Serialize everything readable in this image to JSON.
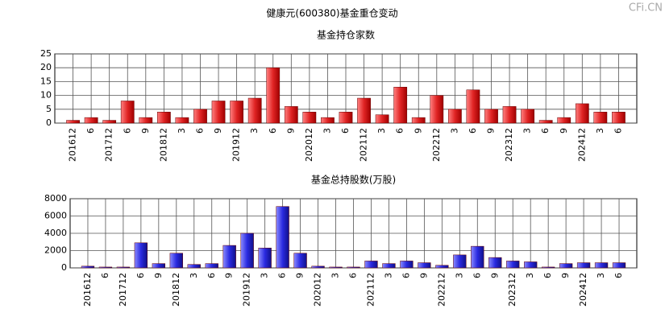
{
  "title": "健康元(600380)基金重仓变动",
  "watermark": "CFi.CN",
  "chart_data": [
    {
      "type": "bar",
      "title": "基金持仓家数",
      "color": "#e02424",
      "categories": [
        "201612",
        "6",
        "201712",
        "6",
        "9",
        "201812",
        "3",
        "6",
        "9",
        "201912",
        "3",
        "6",
        "9",
        "202012",
        "3",
        "6",
        "202112",
        "3",
        "6",
        "9",
        "202212",
        "3",
        "6",
        "9",
        "202312",
        "3",
        "6",
        "9",
        "202412",
        "3",
        "6"
      ],
      "values": [
        1,
        2,
        1,
        8,
        2,
        4,
        2,
        5,
        8,
        8,
        9,
        20,
        6,
        4,
        2,
        4,
        9,
        3,
        13,
        2,
        10,
        5,
        12,
        5,
        6,
        5,
        1,
        2,
        7,
        4,
        4
      ],
      "ylim": [
        0,
        25
      ],
      "yticks": [
        0,
        5,
        10,
        15,
        20,
        25
      ],
      "grid": true
    },
    {
      "type": "bar",
      "title": "基金总持股数(万股)",
      "color": "#2a2ae0",
      "categories": [
        "201612",
        "6",
        "201712",
        "6",
        "9",
        "201812",
        "3",
        "6",
        "9",
        "201912",
        "3",
        "6",
        "9",
        "202012",
        "3",
        "6",
        "202112",
        "3",
        "6",
        "9",
        "202212",
        "3",
        "6",
        "9",
        "202312",
        "3",
        "6",
        "9",
        "202412",
        "3",
        "6"
      ],
      "values": [
        200,
        100,
        100,
        2900,
        500,
        1700,
        400,
        500,
        2600,
        4000,
        2300,
        7100,
        1700,
        200,
        100,
        100,
        800,
        500,
        800,
        600,
        300,
        1500,
        2500,
        1200,
        800,
        700,
        100,
        500,
        600,
        600,
        600
      ],
      "ylim": [
        0,
        8000
      ],
      "yticks": [
        0,
        2000,
        4000,
        6000,
        8000
      ],
      "grid": true
    }
  ]
}
